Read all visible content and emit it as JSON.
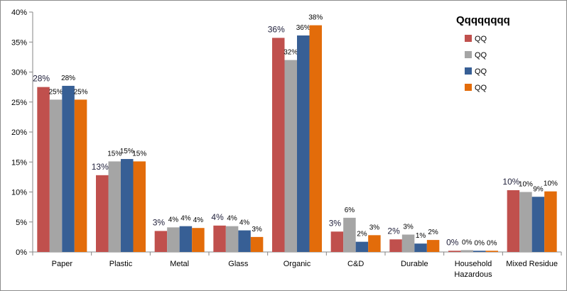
{
  "chart_data": {
    "type": "bar",
    "title": "",
    "xlabel": "",
    "ylabel": "",
    "ylim": [
      0,
      0.4
    ],
    "ytick_values": [
      0,
      0.05,
      0.1,
      0.15,
      0.2,
      0.25,
      0.3,
      0.35,
      0.4
    ],
    "ytick_labels": [
      "0%",
      "5%",
      "10%",
      "15%",
      "20%",
      "25%",
      "30%",
      "35%",
      "40%"
    ],
    "grid": false,
    "legend": {
      "title": "Qqqqqqqq",
      "placement": "top-right"
    },
    "categories": [
      [
        "Paper"
      ],
      [
        "Plastic"
      ],
      [
        "Metal"
      ],
      [
        "Glass"
      ],
      [
        "Organic"
      ],
      [
        "C&D"
      ],
      [
        "Durable"
      ],
      [
        "Household",
        "Hazardous"
      ],
      [
        "Mixed Residue"
      ]
    ],
    "series": [
      {
        "name": "QQ",
        "color": "#c0504d",
        "values": [
          0.275,
          0.128,
          0.035,
          0.044,
          0.357,
          0.034,
          0.021,
          0.002,
          0.103
        ],
        "labels": [
          "28%",
          "13%",
          "3%",
          "4%",
          "36%",
          "3%",
          "2%",
          "0%",
          "10%"
        ]
      },
      {
        "name": "QQ",
        "color": "#a5a5a5",
        "values": [
          0.254,
          0.151,
          0.041,
          0.043,
          0.32,
          0.057,
          0.029,
          0.003,
          0.1
        ],
        "labels": [
          "25%",
          "15%",
          "4%",
          "4%",
          "32%",
          "6%",
          "3%",
          "0%",
          "10%"
        ]
      },
      {
        "name": "QQ",
        "color": "#375f95",
        "values": [
          0.277,
          0.155,
          0.043,
          0.036,
          0.361,
          0.017,
          0.014,
          0.002,
          0.092
        ],
        "labels": [
          "28%",
          "15%",
          "4%",
          "4%",
          "36%",
          "2%",
          "1%",
          "0%",
          "9%"
        ]
      },
      {
        "name": "QQ",
        "color": "#e36c0a",
        "values": [
          0.254,
          0.151,
          0.04,
          0.025,
          0.378,
          0.028,
          0.02,
          0.002,
          0.101
        ],
        "labels": [
          "25%",
          "15%",
          "4%",
          "3%",
          "38%",
          "3%",
          "2%",
          "0%",
          "10%"
        ]
      }
    ]
  }
}
